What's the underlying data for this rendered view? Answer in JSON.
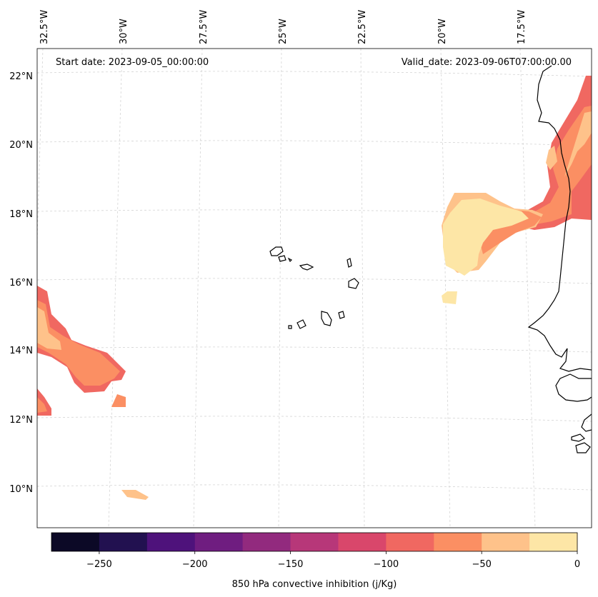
{
  "map": {
    "start_date": "Start date: 2023-09-05_00:00:00",
    "valid_date": "Valid_date: 2023-09-06T07:00:00.00",
    "longitude_labels": [
      "32.5°W",
      "30°W",
      "27.5°W",
      "25°W",
      "22.5°W",
      "20°W",
      "17.5°W"
    ],
    "latitude_labels": [
      "22°N",
      "20°N",
      "18°N",
      "16°N",
      "14°N",
      "12°N",
      "10°N"
    ],
    "extent": {
      "lon_min": -33.0,
      "lon_max": -15.5,
      "lat_min": 8.8,
      "lat_max": 22.8
    },
    "coastline_color": "#000000",
    "gridline_color": "#cccccc"
  },
  "colorbar": {
    "label": "850 hPa convective inhibition (j/Kg)",
    "ticks": [
      "−250",
      "−200",
      "−150",
      "−100",
      "−50",
      "0"
    ],
    "range": [
      -275,
      0
    ],
    "bins": [
      {
        "from": -275,
        "to": -250,
        "color": "#0c0926"
      },
      {
        "from": -250,
        "to": -225,
        "color": "#221150"
      },
      {
        "from": -225,
        "to": -200,
        "color": "#4e127b"
      },
      {
        "from": -200,
        "to": -175,
        "color": "#6f1d80"
      },
      {
        "from": -175,
        "to": -150,
        "color": "#922a7e"
      },
      {
        "from": -150,
        "to": -125,
        "color": "#b73779"
      },
      {
        "from": -125,
        "to": -100,
        "color": "#d9476b"
      },
      {
        "from": -100,
        "to": -75,
        "color": "#f06861"
      },
      {
        "from": -75,
        "to": -50,
        "color": "#fb8f63"
      },
      {
        "from": -50,
        "to": -25,
        "color": "#fec28a"
      },
      {
        "from": -25,
        "to": 0,
        "color": "#fde6a6"
      }
    ]
  },
  "chart_data": {
    "type": "heatmap",
    "title": "",
    "xlabel": "",
    "ylabel": "",
    "colorbar_label": "850 hPa convective inhibition (j/Kg)",
    "colorbar_range": [
      -275,
      0
    ],
    "grid": true,
    "features": [
      {
        "region": "West African coast off Mauritania (17–22°N, 17–15.5°W)",
        "cin_range": [
          -100,
          -25
        ]
      },
      {
        "region": "Ocean west of Mauritania (15.5–18.5°N, 20.5–17.5°W)",
        "cin_range": [
          -75,
          0
        ]
      },
      {
        "region": "Southwest area (12–16°N, 33–30°W)",
        "cin_range": [
          -100,
          -25
        ]
      },
      {
        "region": "Small patch near 10°N, 29.5°W",
        "cin_range": [
          -25,
          0
        ]
      }
    ]
  }
}
